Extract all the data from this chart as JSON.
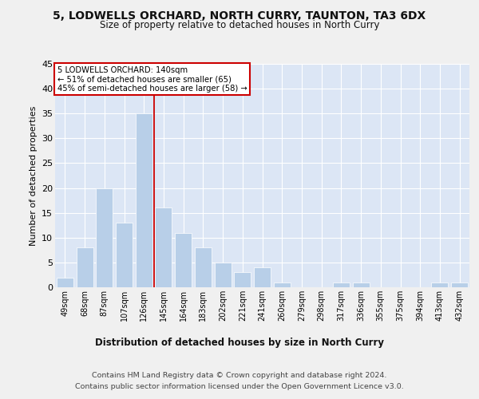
{
  "title": "5, LODWELLS ORCHARD, NORTH CURRY, TAUNTON, TA3 6DX",
  "subtitle": "Size of property relative to detached houses in North Curry",
  "xlabel": "Distribution of detached houses by size in North Curry",
  "ylabel": "Number of detached properties",
  "categories": [
    "49sqm",
    "68sqm",
    "87sqm",
    "107sqm",
    "126sqm",
    "145sqm",
    "164sqm",
    "183sqm",
    "202sqm",
    "221sqm",
    "241sqm",
    "260sqm",
    "279sqm",
    "298sqm",
    "317sqm",
    "336sqm",
    "355sqm",
    "375sqm",
    "394sqm",
    "413sqm",
    "432sqm"
  ],
  "values": [
    2,
    8,
    20,
    13,
    35,
    16,
    11,
    8,
    5,
    3,
    4,
    1,
    0,
    0,
    1,
    1,
    0,
    0,
    0,
    1,
    1
  ],
  "bar_color": "#b8cfe8",
  "background_color": "#dce6f5",
  "grid_color": "#ffffff",
  "reference_line_x": 4.5,
  "reference_line_color": "#cc0000",
  "annotation_lines": [
    "5 LODWELLS ORCHARD: 140sqm",
    "← 51% of detached houses are smaller (65)",
    "45% of semi-detached houses are larger (58) →"
  ],
  "annotation_box_color": "#cc0000",
  "ylim": [
    0,
    45
  ],
  "yticks": [
    0,
    5,
    10,
    15,
    20,
    25,
    30,
    35,
    40,
    45
  ],
  "fig_bg": "#f0f0f0",
  "footer_line1": "Contains HM Land Registry data © Crown copyright and database right 2024.",
  "footer_line2": "Contains public sector information licensed under the Open Government Licence v3.0."
}
